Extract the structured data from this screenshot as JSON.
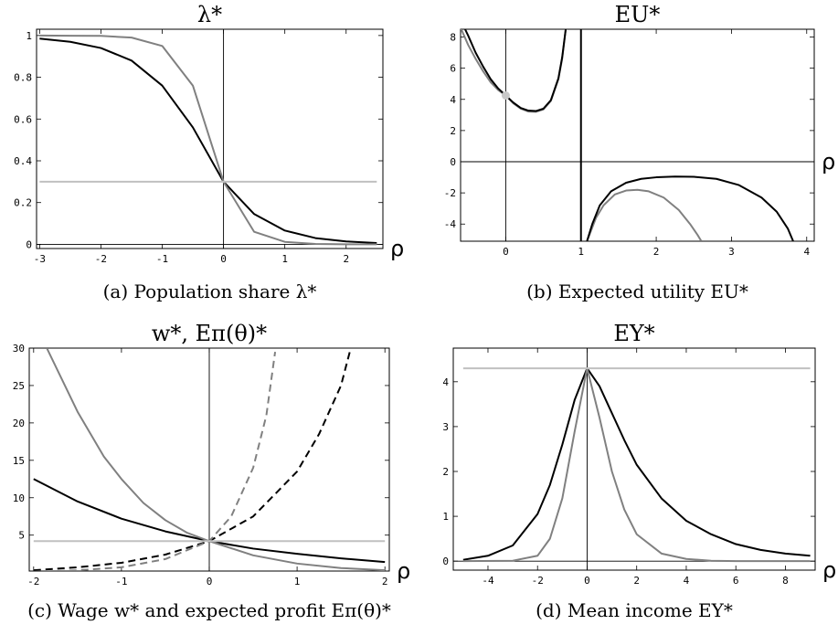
{
  "chart_data": [
    {
      "type": "line",
      "title": "λ*",
      "caption": "(a) Population share λ*",
      "xlabel": "ρ",
      "ylabel": "",
      "xlim": [
        -3.05,
        2.6
      ],
      "ylim": [
        -0.02,
        1.03
      ],
      "xticks": [
        -3,
        -2,
        -1,
        0,
        1,
        2
      ],
      "yticks": [
        0,
        0.2,
        0.4,
        0.6,
        0.8,
        1
      ],
      "ytick_labels": [
        "0",
        "0.2",
        "0.4",
        "0.6",
        "0.8",
        "1"
      ],
      "series": [
        {
          "color": "#000000",
          "dash": "solid",
          "x": [
            -3,
            -2.5,
            -2,
            -1.5,
            -1,
            -0.5,
            0,
            0.5,
            1,
            1.5,
            2,
            2.5
          ],
          "y": [
            0.985,
            0.97,
            0.94,
            0.88,
            0.76,
            0.56,
            0.3,
            0.145,
            0.066,
            0.03,
            0.014,
            0.006
          ]
        },
        {
          "color": "#808080",
          "dash": "solid",
          "x": [
            -3,
            -2.5,
            -2,
            -1.5,
            -1,
            -0.5,
            0,
            0.5,
            1,
            1.5,
            2,
            2.5
          ],
          "y": [
            1.0,
            0.999,
            0.998,
            0.99,
            0.95,
            0.76,
            0.3,
            0.06,
            0.012,
            0.002,
            0.0,
            0.0
          ]
        },
        {
          "color": "#c0c0c0",
          "dash": "solid",
          "x": [
            -3,
            2.5
          ],
          "y": [
            0.3,
            0.3
          ]
        }
      ]
    },
    {
      "type": "line",
      "title": "EU*",
      "caption": "(b) Expected utility EU*",
      "xlabel": "ρ",
      "ylabel": "",
      "xlim": [
        -0.6,
        4.1
      ],
      "ylim": [
        -5.1,
        8.5
      ],
      "xticks": [
        0,
        1,
        2,
        3,
        4
      ],
      "yticks": [
        -4,
        -2,
        0,
        2,
        4,
        6,
        8
      ],
      "ytick_labels": [
        "-4",
        "-2",
        "0",
        "2",
        "4",
        "6",
        "8"
      ],
      "vertical_asymptote": 1,
      "series": [
        {
          "color": "#808080",
          "dash": "solid",
          "x": [
            -0.6,
            -0.5,
            -0.4,
            -0.3,
            -0.2,
            -0.1,
            0,
            0.1,
            0.2,
            0.3,
            0.4,
            0.5,
            0.6,
            0.7,
            0.75,
            0.8
          ],
          "y": [
            8.6,
            7.5,
            6.6,
            5.8,
            5.1,
            4.6,
            4.25,
            3.75,
            3.4,
            3.22,
            3.2,
            3.35,
            3.9,
            5.3,
            6.6,
            8.6
          ]
        },
        {
          "color": "#000000",
          "dash": "solid",
          "x": [
            -0.55,
            -0.5,
            -0.4,
            -0.3,
            -0.2,
            -0.1,
            0,
            0.1,
            0.2,
            0.3,
            0.4,
            0.5,
            0.6,
            0.7,
            0.75,
            0.8
          ],
          "y": [
            8.6,
            8.1,
            7.0,
            6.1,
            5.3,
            4.7,
            4.25,
            3.8,
            3.45,
            3.28,
            3.25,
            3.4,
            3.95,
            5.35,
            6.7,
            8.6
          ]
        },
        {
          "color": "#000000",
          "dash": "solid",
          "x": [
            1.0,
            1.0
          ],
          "y": [
            8.5,
            -5.1
          ]
        },
        {
          "color": "#808080",
          "dash": "solid",
          "x": [
            1.08,
            1.12,
            1.2,
            1.3,
            1.45,
            1.6,
            1.75,
            1.9,
            2.1,
            2.3,
            2.45,
            2.55,
            2.6
          ],
          "y": [
            -5.1,
            -4.6,
            -3.6,
            -2.8,
            -2.1,
            -1.85,
            -1.8,
            -1.9,
            -2.3,
            -3.1,
            -4.0,
            -4.7,
            -5.1
          ]
        },
        {
          "color": "#000000",
          "dash": "solid",
          "x": [
            1.08,
            1.15,
            1.25,
            1.4,
            1.6,
            1.8,
            2.0,
            2.25,
            2.5,
            2.8,
            3.1,
            3.4,
            3.6,
            3.75,
            3.82
          ],
          "y": [
            -5.1,
            -4.0,
            -2.8,
            -1.9,
            -1.35,
            -1.1,
            -1.0,
            -0.95,
            -0.97,
            -1.1,
            -1.5,
            -2.3,
            -3.2,
            -4.3,
            -5.1
          ]
        }
      ],
      "points": [
        {
          "x": 0,
          "y": 4.25,
          "color": "#c8c8c8"
        }
      ]
    },
    {
      "type": "line",
      "title": "w*, Eπ(θ)*",
      "caption": "(c) Wage w* and expected profit Eπ(θ)*",
      "xlabel": "ρ",
      "ylabel": "",
      "xlim": [
        -2.05,
        2.05
      ],
      "ylim": [
        0.2,
        30
      ],
      "xticks": [
        -2,
        -1,
        0,
        1,
        2
      ],
      "yticks": [
        5,
        10,
        15,
        20,
        25,
        30
      ],
      "ytick_labels": [
        "5",
        "10",
        "15",
        "20",
        "25",
        "30"
      ],
      "series": [
        {
          "color": "#000000",
          "dash": "solid",
          "x": [
            -2,
            -1.5,
            -1,
            -0.5,
            0,
            0.5,
            1,
            1.5,
            2
          ],
          "y": [
            12.5,
            9.5,
            7.2,
            5.5,
            4.2,
            3.2,
            2.5,
            1.9,
            1.4
          ]
        },
        {
          "color": "#808080",
          "dash": "solid",
          "x": [
            -1.85,
            -1.5,
            -1.2,
            -1,
            -0.75,
            -0.5,
            -0.25,
            0,
            0.5,
            1,
            1.5,
            2
          ],
          "y": [
            30,
            21.5,
            15.5,
            12.5,
            9.3,
            7.0,
            5.3,
            4.2,
            2.3,
            1.2,
            0.6,
            0.3
          ]
        },
        {
          "color": "#000000",
          "dash": "dashed",
          "x": [
            -2,
            -1.5,
            -1,
            -0.5,
            0,
            0.5,
            1,
            1.25,
            1.5,
            1.6
          ],
          "y": [
            0.3,
            0.7,
            1.3,
            2.4,
            4.2,
            7.5,
            13.5,
            18.5,
            25.0,
            29.5
          ]
        },
        {
          "color": "#808080",
          "dash": "dashed",
          "x": [
            -2,
            -1.5,
            -1,
            -0.5,
            0,
            0.25,
            0.5,
            0.65,
            0.75
          ],
          "y": [
            0.1,
            0.3,
            0.7,
            1.8,
            4.2,
            7.5,
            14.0,
            21.0,
            29.5
          ]
        },
        {
          "color": "#c0c0c0",
          "dash": "solid",
          "x": [
            -2,
            2
          ],
          "y": [
            4.2,
            4.2
          ]
        }
      ]
    },
    {
      "type": "line",
      "title": "EY*",
      "caption": "(d) Mean income EY*",
      "xlabel": "ρ",
      "ylabel": "",
      "xlim": [
        -5.4,
        9.2
      ],
      "ylim": [
        -0.2,
        4.75
      ],
      "xticks": [
        -4,
        -2,
        0,
        2,
        4,
        6,
        8
      ],
      "yticks": [
        0,
        1,
        2,
        3,
        4
      ],
      "ytick_labels": [
        "0",
        "1",
        "2",
        "3",
        "4"
      ],
      "series": [
        {
          "color": "#000000",
          "dash": "solid",
          "x": [
            -5,
            -4,
            -3,
            -2,
            -1.5,
            -1,
            -0.5,
            0,
            0.5,
            1,
            1.5,
            2,
            3,
            4,
            5,
            6,
            7,
            8,
            9
          ],
          "y": [
            0.03,
            0.12,
            0.35,
            1.05,
            1.7,
            2.6,
            3.6,
            4.3,
            3.9,
            3.3,
            2.7,
            2.15,
            1.4,
            0.9,
            0.6,
            0.38,
            0.25,
            0.17,
            0.12
          ]
        },
        {
          "color": "#808080",
          "dash": "solid",
          "x": [
            -5,
            -3,
            -2,
            -1.5,
            -1,
            -0.5,
            0,
            0.5,
            1,
            1.5,
            2,
            3,
            4,
            5,
            6,
            9
          ],
          "y": [
            0.0,
            0.01,
            0.12,
            0.5,
            1.4,
            2.9,
            4.3,
            3.2,
            2.0,
            1.15,
            0.6,
            0.17,
            0.05,
            0.01,
            0.0,
            0.0
          ]
        },
        {
          "color": "#c0c0c0",
          "dash": "solid",
          "x": [
            -5,
            9
          ],
          "y": [
            4.3,
            4.3
          ]
        }
      ]
    }
  ]
}
